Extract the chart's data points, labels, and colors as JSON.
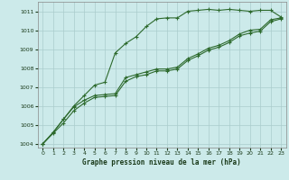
{
  "title": "Graphe pression niveau de la mer (hPa)",
  "bg_color": "#cceaea",
  "grid_color": "#aacccc",
  "line_color": "#2d6a2d",
  "marker_color": "#2d6a2d",
  "xlim": [
    -0.5,
    23.5
  ],
  "ylim": [
    1003.8,
    1011.5
  ],
  "xticks": [
    0,
    1,
    2,
    3,
    4,
    5,
    6,
    7,
    8,
    9,
    10,
    11,
    12,
    13,
    14,
    15,
    16,
    17,
    18,
    19,
    20,
    21,
    22,
    23
  ],
  "yticks": [
    1004,
    1005,
    1006,
    1007,
    1008,
    1009,
    1010,
    1011
  ],
  "series": [
    [
      1004.0,
      1004.6,
      1005.3,
      1006.0,
      1006.55,
      1007.1,
      1007.25,
      1008.8,
      1009.3,
      1009.65,
      1010.2,
      1010.6,
      1010.65,
      1010.65,
      1011.0,
      1011.05,
      1011.1,
      1011.05,
      1011.1,
      1011.05,
      1011.0,
      1011.05,
      1011.05,
      1010.7
    ],
    [
      1004.0,
      1004.6,
      1005.3,
      1005.95,
      1006.3,
      1006.55,
      1006.6,
      1006.65,
      1007.5,
      1007.65,
      1007.8,
      1007.95,
      1007.95,
      1008.05,
      1008.5,
      1008.75,
      1009.05,
      1009.2,
      1009.45,
      1009.8,
      1010.0,
      1010.05,
      1010.55,
      1010.65
    ],
    [
      1004.0,
      1004.55,
      1005.1,
      1005.75,
      1006.15,
      1006.45,
      1006.5,
      1006.55,
      1007.3,
      1007.55,
      1007.65,
      1007.85,
      1007.85,
      1007.95,
      1008.4,
      1008.65,
      1008.95,
      1009.1,
      1009.35,
      1009.7,
      1009.85,
      1009.95,
      1010.45,
      1010.6
    ]
  ]
}
